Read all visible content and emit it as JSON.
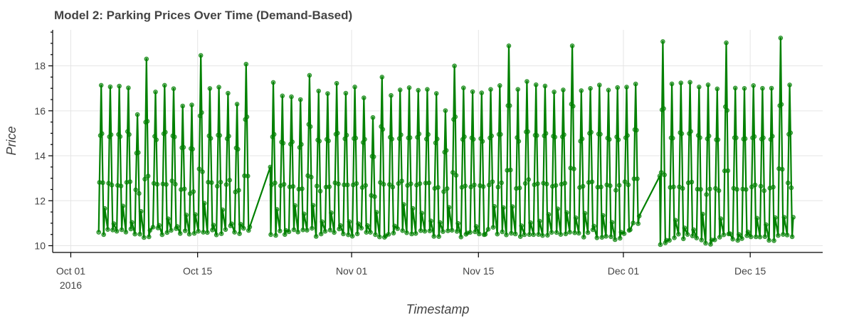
{
  "chart_data": {
    "type": "line",
    "title": "Model 2: Parking Prices Over Time (Demand-Based)",
    "xlabel": "Timestamp",
    "ylabel": "Price",
    "x_range": [
      "2016-09-29",
      "2016-12-23"
    ],
    "ylim": [
      9.7,
      19.6
    ],
    "grid": true,
    "legend": "none",
    "markers": true,
    "color": "#008000",
    "x_ticks": [
      {
        "date": "2016-10-01",
        "label": "Oct 01",
        "sublabel": "2016"
      },
      {
        "date": "2016-10-15",
        "label": "Oct 15",
        "sublabel": ""
      },
      {
        "date": "2016-11-01",
        "label": "Nov 01",
        "sublabel": ""
      },
      {
        "date": "2016-11-15",
        "label": "Nov 15",
        "sublabel": ""
      },
      {
        "date": "2016-12-01",
        "label": "Dec 01",
        "sublabel": ""
      },
      {
        "date": "2016-12-15",
        "label": "Dec 15",
        "sublabel": ""
      }
    ],
    "y_ticks": [
      10,
      12,
      14,
      16,
      18
    ],
    "series": [
      {
        "x": [
          "2016-10-04",
          "2016-10-05",
          "2016-10-06",
          "2016-10-07",
          "2016-10-08",
          "2016-10-09",
          "2016-10-10",
          "2016-10-11",
          "2016-10-12",
          "2016-10-13",
          "2016-10-14",
          "2016-10-15",
          "2016-10-16",
          "2016-10-17",
          "2016-10-18",
          "2016-10-19",
          "2016-10-20",
          "2016-10-23",
          "2016-10-24",
          "2016-10-25",
          "2016-10-26",
          "2016-10-27",
          "2016-10-28",
          "2016-10-29",
          "2016-10-30",
          "2016-10-31",
          "2016-11-01",
          "2016-11-02",
          "2016-11-03",
          "2016-11-04",
          "2016-11-05",
          "2016-11-06",
          "2016-11-07",
          "2016-11-08",
          "2016-11-09",
          "2016-11-10",
          "2016-11-11",
          "2016-11-12",
          "2016-11-13",
          "2016-11-14",
          "2016-11-15",
          "2016-11-16",
          "2016-11-17",
          "2016-11-18",
          "2016-11-19",
          "2016-11-20",
          "2016-11-21",
          "2016-11-22",
          "2016-11-23",
          "2016-11-24",
          "2016-11-25",
          "2016-11-26",
          "2016-11-27",
          "2016-11-28",
          "2016-11-29",
          "2016-11-30",
          "2016-12-01",
          "2016-12-02",
          "2016-12-05",
          "2016-12-06",
          "2016-12-07",
          "2016-12-08",
          "2016-12-09",
          "2016-12-10",
          "2016-12-11",
          "2016-12-12",
          "2016-12-13",
          "2016-12-14",
          "2016-12-15",
          "2016-12-16",
          "2016-12-17",
          "2016-12-18",
          "2016-12-19"
        ],
        "low": [
          10.6,
          10.7,
          10.6,
          10.7,
          10.6,
          10.4,
          10.8,
          10.6,
          10.7,
          10.6,
          10.5,
          10.7,
          10.6,
          10.6,
          10.8,
          10.6,
          10.7,
          10.5,
          10.6,
          10.7,
          10.6,
          10.7,
          10.4,
          10.6,
          10.7,
          10.6,
          10.5,
          10.7,
          10.6,
          10.4,
          10.6,
          10.7,
          10.5,
          10.6,
          10.7,
          10.4,
          10.6,
          10.7,
          10.5,
          10.6,
          10.5,
          10.7,
          10.6,
          10.6,
          10.5,
          10.6,
          10.6,
          10.5,
          10.6,
          10.6,
          10.7,
          10.5,
          10.6,
          10.4,
          10.5,
          10.3,
          10.6,
          11.1,
          10.1,
          10.3,
          10.4,
          10.5,
          10.3,
          10.0,
          10.3,
          10.4,
          10.3,
          10.4,
          10.5,
          10.3,
          10.3,
          10.4,
          10.5
        ],
        "high": [
          17.2,
          17.0,
          17.1,
          17.1,
          15.9,
          18.2,
          16.8,
          17.1,
          17.0,
          16.1,
          16.3,
          18.5,
          17.0,
          17.0,
          16.9,
          16.3,
          18.2,
          17.2,
          16.7,
          16.6,
          16.4,
          17.6,
          16.8,
          16.7,
          17.1,
          16.9,
          17.0,
          16.6,
          15.7,
          17.6,
          16.8,
          16.9,
          17.1,
          17.0,
          16.9,
          16.8,
          16.1,
          18.1,
          16.9,
          16.9,
          16.9,
          17.0,
          17.0,
          19.0,
          16.9,
          17.3,
          17.2,
          17.1,
          16.9,
          17.0,
          19.0,
          16.9,
          17.1,
          17.1,
          16.9,
          17.1,
          17.0,
          17.1,
          19.2,
          17.2,
          17.2,
          17.2,
          17.1,
          17.2,
          16.9,
          19.0,
          17.1,
          17.0,
          17.1,
          17.0,
          17.1,
          19.2,
          17.1
        ]
      }
    ]
  }
}
